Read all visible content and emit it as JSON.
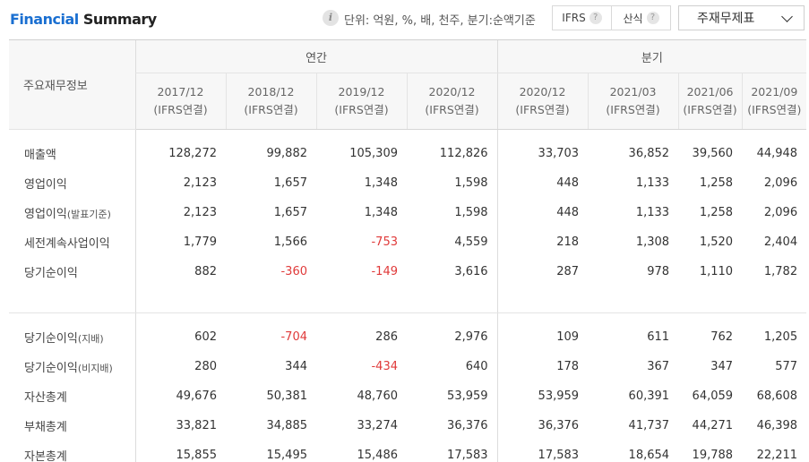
{
  "header": {
    "title_part1": "Financial",
    "title_part2": "Summary",
    "info_icon": "i",
    "unit_text": "단위: 억원, %, 배, 천주, 분기:순액기준",
    "toggle": [
      {
        "label": "IFRS",
        "help": "?"
      },
      {
        "label": "산식",
        "help": "?"
      }
    ],
    "statement_select": "주재무제표"
  },
  "table": {
    "corner_label": "주요재무정보",
    "groups": {
      "annual": "연간",
      "quarterly": "분기"
    },
    "periods": [
      {
        "date": "2017/12",
        "basis": "(IFRS연결)"
      },
      {
        "date": "2018/12",
        "basis": "(IFRS연결)"
      },
      {
        "date": "2019/12",
        "basis": "(IFRS연결)"
      },
      {
        "date": "2020/12",
        "basis": "(IFRS연결)"
      },
      {
        "date": "2020/12",
        "basis": "(IFRS연결)"
      },
      {
        "date": "2021/03",
        "basis": "(IFRS연결)"
      },
      {
        "date": "2021/06",
        "basis": "(IFRS연결)"
      },
      {
        "date": "2021/09",
        "basis": "(IFRS연결)"
      }
    ],
    "rows_group1": [
      {
        "label": "매출액",
        "suffix": "",
        "values": [
          "128,272",
          "99,882",
          "105,309",
          "112,826",
          "33,703",
          "36,852",
          "39,560",
          "44,948"
        ]
      },
      {
        "label": "영업이익",
        "suffix": "",
        "values": [
          "2,123",
          "1,657",
          "1,348",
          "1,598",
          "448",
          "1,133",
          "1,258",
          "2,096"
        ]
      },
      {
        "label": "영업이익",
        "suffix": "(발표기준)",
        "values": [
          "2,123",
          "1,657",
          "1,348",
          "1,598",
          "448",
          "1,133",
          "1,258",
          "2,096"
        ]
      },
      {
        "label": "세전계속사업이익",
        "suffix": "",
        "values": [
          "1,779",
          "1,566",
          "-753",
          "4,559",
          "218",
          "1,308",
          "1,520",
          "2,404"
        ]
      },
      {
        "label": "당기순이익",
        "suffix": "",
        "values": [
          "882",
          "-360",
          "-149",
          "3,616",
          "287",
          "978",
          "1,110",
          "1,782"
        ]
      }
    ],
    "rows_group2": [
      {
        "label": "당기순이익",
        "suffix": "(지배)",
        "values": [
          "602",
          "-704",
          "286",
          "2,976",
          "109",
          "611",
          "762",
          "1,205"
        ]
      },
      {
        "label": "당기순이익",
        "suffix": "(비지배)",
        "values": [
          "280",
          "344",
          "-434",
          "640",
          "178",
          "367",
          "347",
          "577"
        ]
      },
      {
        "label": "자산총계",
        "suffix": "",
        "values": [
          "49,676",
          "50,381",
          "48,760",
          "53,959",
          "53,959",
          "60,391",
          "64,059",
          "68,608"
        ]
      },
      {
        "label": "부채총계",
        "suffix": "",
        "values": [
          "33,821",
          "34,885",
          "33,274",
          "36,376",
          "36,376",
          "41,737",
          "44,271",
          "46,398"
        ]
      },
      {
        "label": "자본총계",
        "suffix": "",
        "values": [
          "15,855",
          "15,495",
          "15,486",
          "17,583",
          "17,583",
          "18,654",
          "19,788",
          "22,211"
        ]
      }
    ],
    "negative_color": "#e03a3a"
  }
}
